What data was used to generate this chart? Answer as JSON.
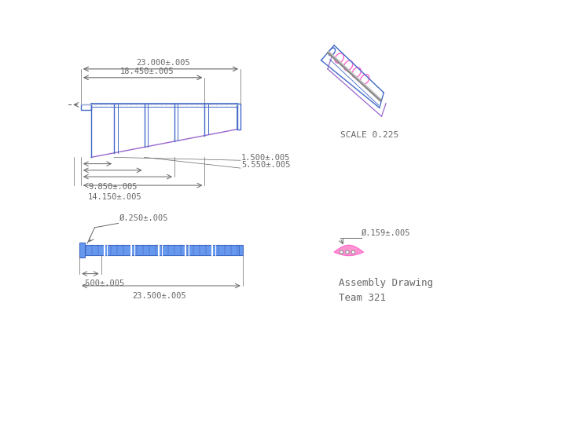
{
  "bg_color": "#ffffff",
  "blue": "#4169c8",
  "purple": "#9966cc",
  "pink": "#ff66cc",
  "gray": "#808080",
  "dark_gray": "#555555",
  "light_gray": "#aaaaaa",
  "dim_color": "#666666",
  "text_color": "#333333",
  "dim_text_size": 7.5,
  "label_text_size": 8,
  "title_text_size": 9,
  "dims_top": {
    "total_length": "23.000±.005",
    "inner_length": "18.450±.005",
    "d1": "1.500±.005",
    "d2": "5.550±.005",
    "d3": "9.850±.005",
    "d4": "14.150±.005"
  },
  "dims_front": {
    "diameter": "Ø.250±.005",
    "d1": ".500±.005",
    "total": "23.500±.005"
  },
  "dims_end": {
    "diameter": "Ø.159±.005"
  },
  "scale_text": "SCALE 0.225",
  "title_line1": "Assembly Drawing",
  "title_line2": "Team 321"
}
